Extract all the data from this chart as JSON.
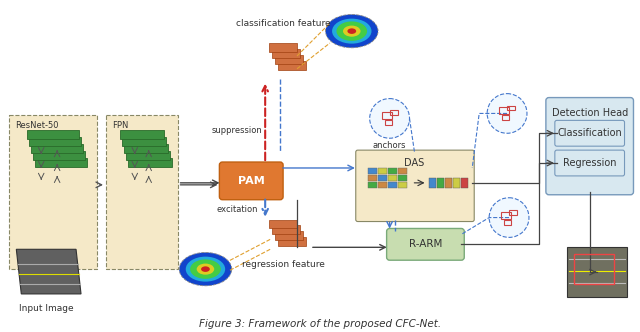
{
  "title": "Figure 3: Framework of the proposed CFC-Net.",
  "title_fontsize": 7.5,
  "bg_color": "#ffffff",
  "fig_width": 6.4,
  "fig_height": 3.32,
  "labels": {
    "input_image": "Input Image",
    "resnet": "ResNet-50",
    "fpn": "FPN",
    "pam": "PAM",
    "das": "DAS",
    "rarm": "R-ARM",
    "detection_head": "Detection Head",
    "classification": "Classification",
    "regression": "Regression",
    "suppression": "suppression",
    "excitation": "excitation",
    "anchors": "anchors",
    "class_feat": "classification feature",
    "reg_feat": "regression feature"
  },
  "colors": {
    "resnet_bg": "#f5e9c8",
    "fpn_bg": "#f5e9c8",
    "pam_bg": "#e07830",
    "das_bg": "#f5e9c8",
    "rarm_bg": "#c8ddb0",
    "detection_bg": "#c8d8ee",
    "green_layer": "#3c9040",
    "orange_block": "#e07830",
    "green_block": "#5aaa5a",
    "blue_light": "#adc6e0",
    "red_arrow": "#cc2222",
    "blue_arrow": "#4477cc",
    "orange_dashed": "#e0a030",
    "blue_dashed": "#4477cc",
    "gray_line": "#444444",
    "text_dark": "#222222",
    "pam_text": "#ffffff",
    "rarm_text": "#333333",
    "das_text": "#333333"
  }
}
